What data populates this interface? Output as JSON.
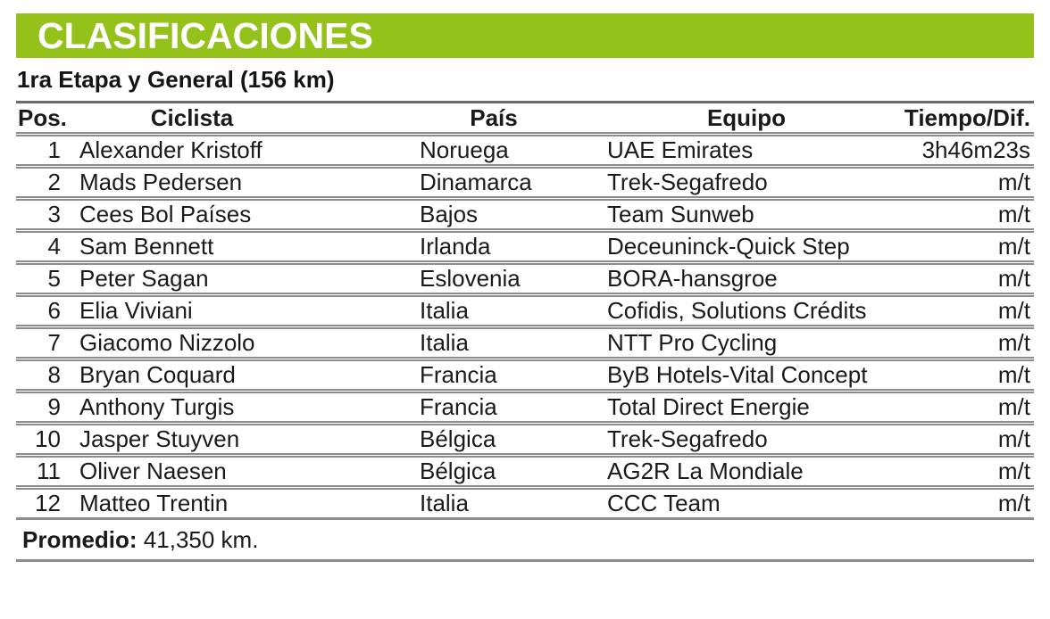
{
  "banner": {
    "title": "CLASIFICACIONES",
    "bg_color": "#95c11b"
  },
  "subtitle": "1ra Etapa y General (156 km)",
  "table": {
    "headers": [
      "Pos.",
      "Ciclista",
      "País",
      "Equipo",
      "Tiempo/Dif."
    ],
    "rows": [
      {
        "pos": "1",
        "ciclista": "Alexander Kristoff",
        "pais": "Noruega",
        "equipo": "UAE Emirates",
        "tiempo": "3h46m23s"
      },
      {
        "pos": "2",
        "ciclista": "Mads Pedersen",
        "pais": "Dinamarca",
        "equipo": "Trek-Segafredo",
        "tiempo": "m/t"
      },
      {
        "pos": "3",
        "ciclista": "Cees Bol Países",
        "pais": "Bajos",
        "equipo": "Team Sunweb",
        "tiempo": "m/t"
      },
      {
        "pos": "4",
        "ciclista": "Sam Bennett",
        "pais": "Irlanda",
        "equipo": "Deceuninck-Quick Step",
        "tiempo": "m/t"
      },
      {
        "pos": "5",
        "ciclista": "Peter Sagan",
        "pais": "Eslovenia",
        "equipo": "BORA-hansgroe",
        "tiempo": "m/t"
      },
      {
        "pos": "6",
        "ciclista": "Elia Viviani",
        "pais": "Italia",
        "equipo": "Cofidis, Solutions Crédits",
        "tiempo": "m/t"
      },
      {
        "pos": "7",
        "ciclista": "Giacomo Nizzolo",
        "pais": "Italia",
        "equipo": "NTT Pro Cycling",
        "tiempo": "m/t"
      },
      {
        "pos": "8",
        "ciclista": "Bryan Coquard",
        "pais": "Francia",
        "equipo": "ByB Hotels-Vital Concept",
        "tiempo": "m/t"
      },
      {
        "pos": "9",
        "ciclista": "Anthony Turgis",
        "pais": "Francia",
        "equipo": "Total Direct Energie",
        "tiempo": "m/t"
      },
      {
        "pos": "10",
        "ciclista": "Jasper Stuyven",
        "pais": "Bélgica",
        "equipo": "Trek-Segafredo",
        "tiempo": "m/t"
      },
      {
        "pos": "11",
        "ciclista": "Oliver Naesen",
        "pais": "Bélgica",
        "equipo": "AG2R La Mondiale",
        "tiempo": "m/t"
      },
      {
        "pos": "12",
        "ciclista": "Matteo Trentin",
        "pais": "Italia",
        "equipo": "CCC Team",
        "tiempo": "m/t"
      }
    ],
    "footer": {
      "label": "Promedio:",
      "value": " 41,350 km."
    }
  }
}
